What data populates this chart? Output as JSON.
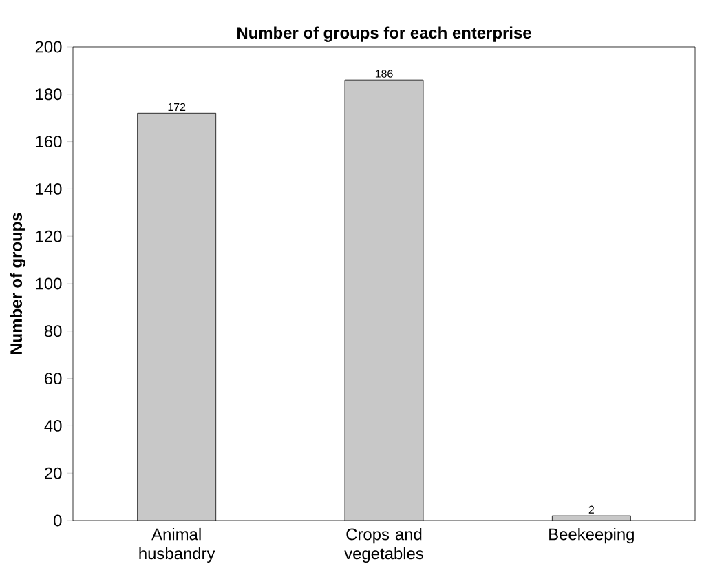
{
  "chart_data": {
    "type": "bar",
    "title": "Number of groups for each enterprise",
    "ylabel": "Number of groups",
    "categories": [
      "Animal husbandry",
      "Crops and vegetables",
      "Beekeeping"
    ],
    "values": [
      172,
      186,
      2
    ],
    "color": "#c8c8c8",
    "ylim": [
      0,
      200
    ],
    "yticks": [
      0,
      20,
      40,
      60,
      80,
      100,
      120,
      140,
      160,
      180,
      200
    ],
    "data_labels": true
  }
}
